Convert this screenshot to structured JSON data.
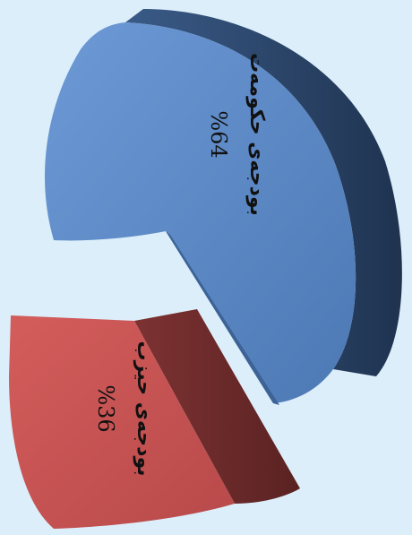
{
  "chart_data": {
    "type": "pie",
    "style": "3d-exploded",
    "orientation": "rotated-90-clockwise",
    "slices": [
      {
        "label": "بودجەی حکومەت",
        "value": 64,
        "value_text": "%64",
        "color": "#5a86c4",
        "side_color": "#2f4a70"
      },
      {
        "label": "بودجەی حیزب",
        "value": 36,
        "value_text": "%36",
        "color": "#c44f4e",
        "side_color": "#6e2a2a"
      }
    ]
  },
  "background_color": "#dceefa"
}
